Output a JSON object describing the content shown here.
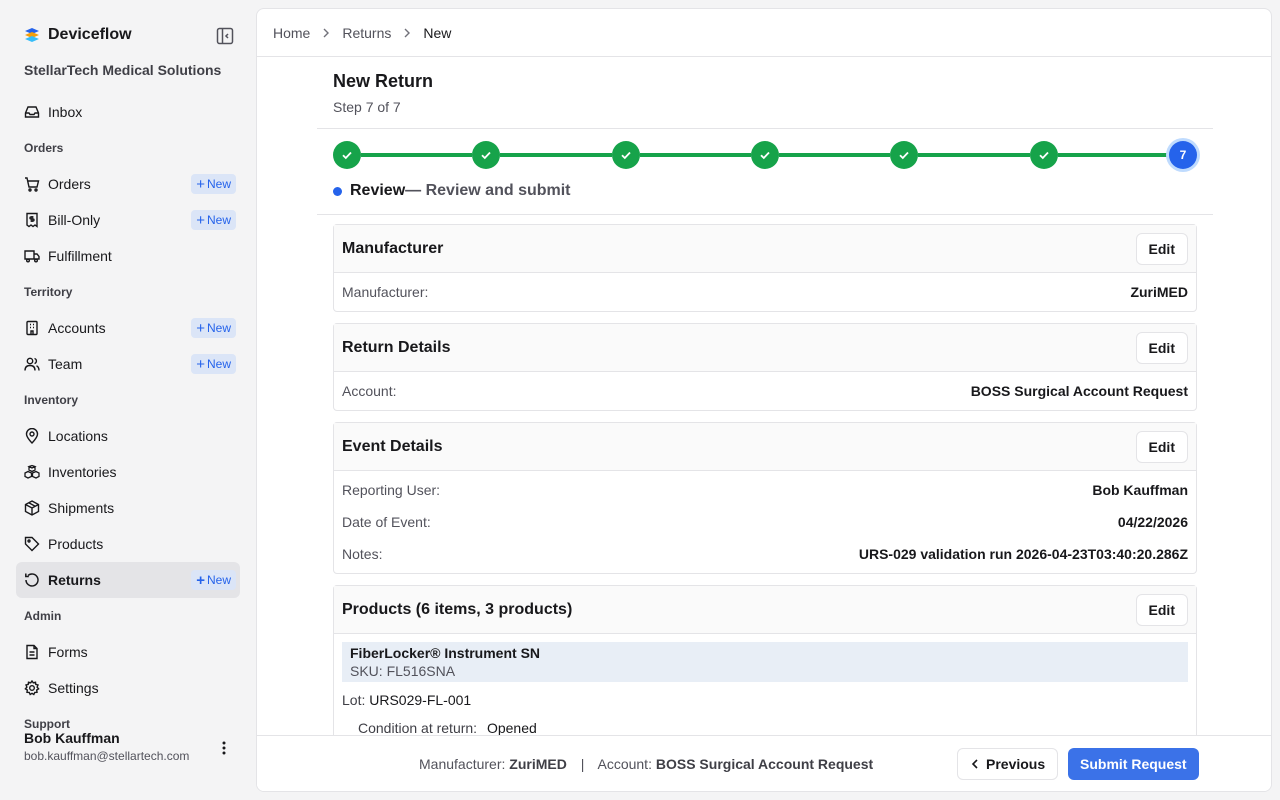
{
  "app": {
    "name": "Deviceflow",
    "org": "StellarTech Medical Solutions"
  },
  "sidebar": {
    "groups": [
      {
        "items": [
          {
            "label": "Inbox",
            "icon": "inbox-icon"
          }
        ]
      },
      {
        "label": "Orders",
        "items": [
          {
            "label": "Orders",
            "icon": "cart-icon",
            "badge": "New"
          },
          {
            "label": "Bill-Only",
            "icon": "receipt-icon",
            "badge": "New"
          },
          {
            "label": "Fulfillment",
            "icon": "truck-icon"
          }
        ]
      },
      {
        "label": "Territory",
        "items": [
          {
            "label": "Accounts",
            "icon": "building-icon",
            "badge": "New"
          },
          {
            "label": "Team",
            "icon": "users-icon",
            "badge": "New"
          }
        ]
      },
      {
        "label": "Inventory",
        "items": [
          {
            "label": "Locations",
            "icon": "map-pin-icon"
          },
          {
            "label": "Inventories",
            "icon": "boxes-icon"
          },
          {
            "label": "Shipments",
            "icon": "package-icon"
          },
          {
            "label": "Products",
            "icon": "tag-icon"
          },
          {
            "label": "Returns",
            "icon": "undo-icon",
            "badge": "New",
            "active": true
          }
        ]
      },
      {
        "label": "Admin",
        "items": [
          {
            "label": "Forms",
            "icon": "file-icon"
          },
          {
            "label": "Settings",
            "icon": "gear-icon"
          }
        ]
      },
      {
        "label": "Support",
        "items": []
      }
    ],
    "user": {
      "name": "Bob Kauffman",
      "email": "bob.kauffman@stellartech.com"
    }
  },
  "breadcrumb": {
    "home": "Home",
    "section": "Returns",
    "current": "New"
  },
  "page": {
    "title": "New Return",
    "step_text": "Step 7 of 7",
    "current_step_number": "7",
    "total_steps": 7,
    "completed_steps": 6,
    "step_name": "Review",
    "step_desc": "— Review and submit"
  },
  "sections": {
    "manufacturer": {
      "title": "Manufacturer",
      "edit": "Edit",
      "rows": [
        {
          "k": "Manufacturer:",
          "v": "ZuriMED"
        }
      ]
    },
    "return_details": {
      "title": "Return Details",
      "edit": "Edit",
      "rows": [
        {
          "k": "Account:",
          "v": "BOSS Surgical Account Request"
        }
      ]
    },
    "event_details": {
      "title": "Event Details",
      "edit": "Edit",
      "rows": [
        {
          "k": "Reporting User:",
          "v": "Bob Kauffman"
        },
        {
          "k": "Date of Event:",
          "v": "04/22/2026"
        },
        {
          "k": "Notes:",
          "v": "URS-029 validation run 2026-04-23T03:40:20.286Z"
        }
      ]
    },
    "products": {
      "title": "Products (6 items, 3 products)",
      "edit": "Edit",
      "first_product": {
        "name": "FiberLocker® Instrument SN",
        "sku": "SKU: FL516SNA",
        "lot_label": "Lot:",
        "lot": "URS029-FL-001",
        "condition_label": "Condition at return:",
        "condition": "Opened"
      }
    }
  },
  "footer": {
    "manufacturer_label": "Manufacturer:",
    "manufacturer": "ZuriMED",
    "separator": "|",
    "account_label": "Account:",
    "account": "BOSS Surgical Account Request",
    "previous": "Previous",
    "submit": "Submit Request"
  }
}
